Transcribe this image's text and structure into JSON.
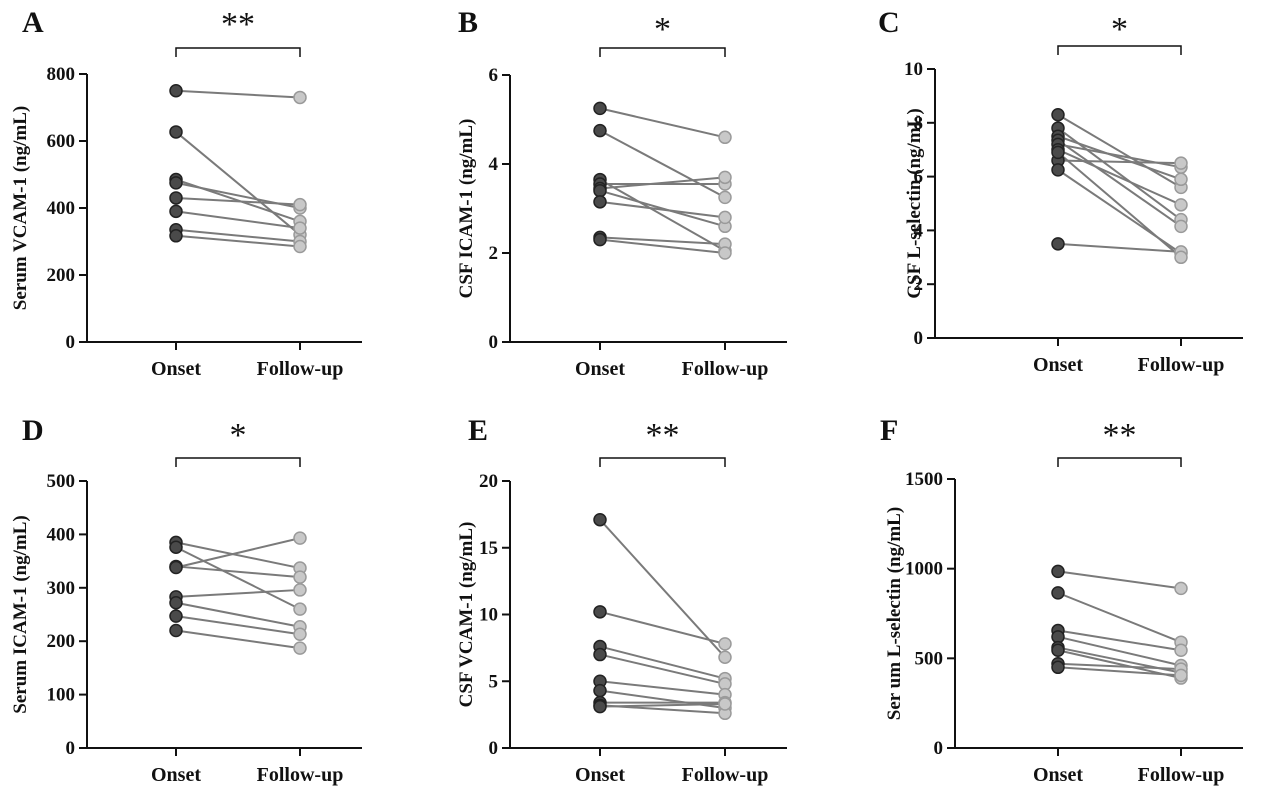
{
  "colors": {
    "onset": "#4a4a4a",
    "follow": "#c8c8c8",
    "line": "#7a7a7a",
    "axis": "#111111"
  },
  "chart_data": [
    {
      "type": "line",
      "panel": "A",
      "ylabel": "Serum VCAM-1 (ng/mL)",
      "categories": [
        "Onset",
        "Follow-up"
      ],
      "ylim": [
        0,
        800
      ],
      "yticks": [
        0,
        200,
        400,
        600,
        800
      ],
      "yticklabels": [
        "0",
        "200",
        "400",
        "600",
        "800"
      ],
      "significance": "**",
      "pairs": [
        [
          750,
          730
        ],
        [
          627,
          320
        ],
        [
          485,
          360
        ],
        [
          475,
          400
        ],
        [
          430,
          410
        ],
        [
          390,
          340
        ],
        [
          335,
          300
        ],
        [
          317,
          285
        ]
      ]
    },
    {
      "type": "line",
      "panel": "B",
      "ylabel": "CSF ICAM-1 (ng/mL)",
      "categories": [
        "Onset",
        "Follow-up"
      ],
      "ylim": [
        0,
        6
      ],
      "yticks": [
        0,
        2,
        4,
        6
      ],
      "yticklabels": [
        "0",
        "2",
        "4",
        "6"
      ],
      "significance": "*",
      "pairs": [
        [
          5.25,
          4.6
        ],
        [
          4.75,
          3.25
        ],
        [
          3.65,
          2.05
        ],
        [
          3.55,
          3.55
        ],
        [
          3.45,
          3.7
        ],
        [
          3.4,
          2.6
        ],
        [
          3.15,
          2.8
        ],
        [
          2.35,
          2.2
        ],
        [
          2.3,
          2.0
        ]
      ]
    },
    {
      "type": "line",
      "panel": "C",
      "ylabel": "CSF L-selectin (ng/mL)",
      "categories": [
        "Onset",
        "Follow-up"
      ],
      "ylim": [
        0,
        10
      ],
      "yticks": [
        0,
        2,
        4,
        6,
        8,
        10
      ],
      "yticklabels": [
        "0",
        "2",
        "4",
        "6",
        "8",
        "10"
      ],
      "significance": "*",
      "pairs": [
        [
          8.3,
          5.6
        ],
        [
          7.8,
          4.4
        ],
        [
          7.5,
          5.9
        ],
        [
          7.35,
          4.15
        ],
        [
          7.2,
          6.35
        ],
        [
          6.6,
          6.5
        ],
        [
          6.25,
          3.15
        ],
        [
          3.5,
          3.2
        ],
        [
          7.0,
          4.95
        ],
        [
          6.9,
          3.0
        ]
      ]
    },
    {
      "type": "line",
      "panel": "D",
      "ylabel": "Serum ICAM-1 (ng/mL)",
      "categories": [
        "Onset",
        "Follow-up"
      ],
      "ylim": [
        0,
        500
      ],
      "yticks": [
        0,
        100,
        200,
        300,
        400,
        500
      ],
      "yticklabels": [
        "0",
        "100",
        "200",
        "300",
        "400",
        "500"
      ],
      "significance": "*",
      "pairs": [
        [
          385,
          337
        ],
        [
          376,
          260
        ],
        [
          340,
          320
        ],
        [
          338,
          393
        ],
        [
          283,
          296
        ],
        [
          272,
          227
        ],
        [
          247,
          213
        ],
        [
          220,
          187
        ]
      ]
    },
    {
      "type": "line",
      "panel": "E",
      "ylabel": "CSF VCAM-1 (ng/mL)",
      "categories": [
        "Onset",
        "Follow-up"
      ],
      "ylim": [
        0,
        20
      ],
      "yticks": [
        0,
        5,
        10,
        15,
        20
      ],
      "yticklabels": [
        "0",
        "5",
        "10",
        "15",
        "20"
      ],
      "significance": "**",
      "pairs": [
        [
          17.1,
          6.8
        ],
        [
          10.2,
          7.8
        ],
        [
          7.6,
          5.2
        ],
        [
          7.0,
          4.8
        ],
        [
          5.0,
          4.0
        ],
        [
          4.3,
          3.0
        ],
        [
          3.4,
          3.4
        ],
        [
          3.2,
          2.6
        ],
        [
          3.1,
          3.3
        ]
      ]
    },
    {
      "type": "line",
      "panel": "F",
      "ylabel": "Ser um L-selectin (ng/mL)",
      "categories": [
        "Onset",
        "Follow-up"
      ],
      "ylim": [
        0,
        1500
      ],
      "yticks": [
        0,
        500,
        1000,
        1500
      ],
      "yticklabels": [
        "0",
        "500",
        "1000",
        "1500"
      ],
      "significance": "**",
      "pairs": [
        [
          985,
          890
        ],
        [
          865,
          590
        ],
        [
          655,
          545
        ],
        [
          620,
          460
        ],
        [
          560,
          420
        ],
        [
          545,
          390
        ],
        [
          470,
          440
        ],
        [
          450,
          405
        ]
      ]
    }
  ]
}
